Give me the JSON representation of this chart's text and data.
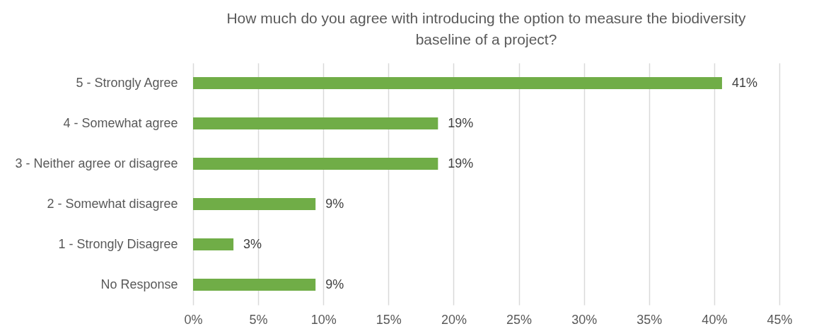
{
  "chart_data": {
    "type": "bar",
    "orientation": "horizontal",
    "title": "How much do you agree with introducing the option to measure the biodiversity baseline of a project?",
    "categories": [
      "5 - Strongly Agree",
      "4 - Somewhat agree",
      "3 - Neither agree or disagree",
      "2 - Somewhat disagree",
      "1 - Strongly Disagree",
      "No Response"
    ],
    "values": [
      40.6,
      18.8,
      18.8,
      9.4,
      3.1,
      9.4
    ],
    "value_labels": [
      "41%",
      "19%",
      "19%",
      "9%",
      "3%",
      "9%"
    ],
    "color": "#70ad47",
    "xlim": [
      0,
      45
    ],
    "xticks": [
      {
        "value": 0,
        "label": "0%"
      },
      {
        "value": 5,
        "label": "5%"
      },
      {
        "value": 10,
        "label": "10%"
      },
      {
        "value": 15,
        "label": "15%"
      },
      {
        "value": 20,
        "label": "20%"
      },
      {
        "value": 25,
        "label": "25%"
      },
      {
        "value": 30,
        "label": "30%"
      },
      {
        "value": 35,
        "label": "35%"
      },
      {
        "value": 40,
        "label": "40%"
      },
      {
        "value": 45,
        "label": "45%"
      }
    ],
    "grid": "x"
  }
}
